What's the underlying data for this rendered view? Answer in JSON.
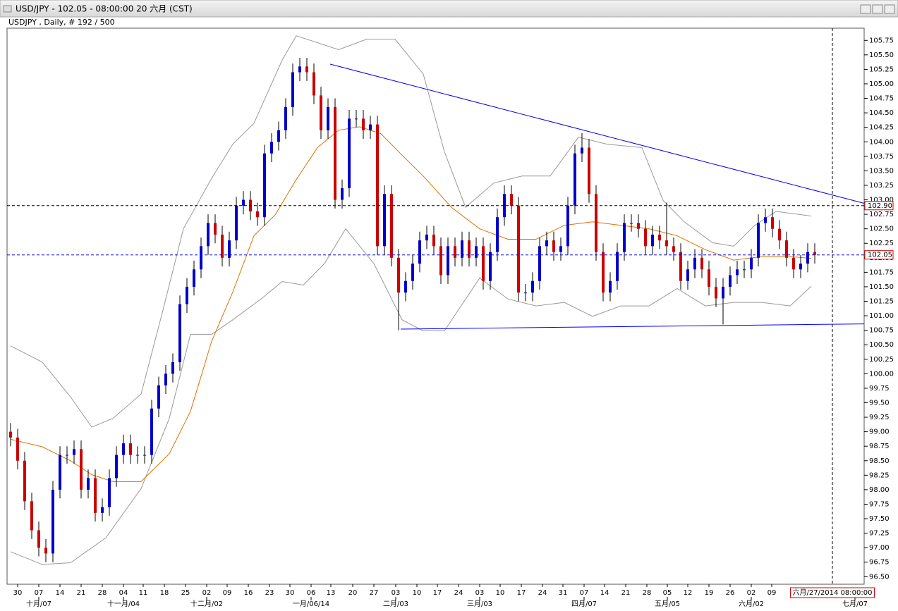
{
  "window": {
    "title": "USD/JPY - 102.05 - 08:00:00  20 六月 (CST)"
  },
  "chart_data": {
    "type": "candlestick",
    "subtitle": "USDJPY , Daily, # 192 / 500",
    "up_color": "#0000cc",
    "down_color": "#cc0000",
    "open": [
      99.0,
      98.9,
      98.5,
      97.8,
      97.3,
      97.0,
      96.9,
      98.0,
      98.6,
      98.6,
      98.7,
      98.0,
      98.2,
      97.6,
      97.7,
      98.2,
      98.6,
      98.8,
      98.6,
      98.6,
      98.6,
      99.4,
      99.8,
      100.0,
      100.2,
      101.2,
      101.5,
      101.8,
      102.2,
      102.6,
      102.4,
      102.0,
      102.3,
      102.9,
      103.0,
      102.8,
      102.7,
      103.8,
      104.0,
      104.2,
      104.6,
      105.2,
      105.3,
      105.2,
      104.8,
      104.2,
      104.6,
      103.0,
      103.2,
      104.4,
      104.4,
      104.2,
      104.3,
      102.2,
      103.1,
      102.0,
      101.4,
      101.6,
      101.9,
      102.3,
      102.4,
      102.2,
      101.7,
      102.2,
      102.0,
      102.3,
      102.0,
      102.2,
      101.6,
      102.1,
      102.7,
      103.1,
      102.9,
      101.4,
      101.4,
      101.6,
      102.2,
      102.3,
      102.1,
      102.2,
      102.9,
      103.8,
      103.9,
      103.1,
      102.1,
      101.4,
      101.6,
      102.1,
      102.6,
      102.6,
      102.5,
      102.2,
      102.4,
      102.3,
      102.2,
      102.1,
      101.6,
      101.8,
      102.0,
      101.8,
      101.5,
      101.3,
      101.5,
      101.7,
      101.8,
      101.8,
      102.0,
      102.6,
      102.7,
      102.5,
      102.3,
      102.0,
      101.8,
      101.9,
      102.1
    ],
    "high": [
      99.15,
      99.05,
      98.65,
      97.95,
      97.45,
      97.15,
      98.15,
      98.75,
      98.75,
      98.85,
      98.85,
      98.35,
      98.35,
      97.85,
      98.35,
      98.75,
      98.95,
      98.95,
      98.75,
      98.75,
      99.55,
      99.95,
      100.15,
      100.35,
      101.35,
      101.65,
      101.95,
      102.35,
      102.75,
      102.75,
      102.55,
      102.45,
      103.05,
      103.15,
      103.15,
      102.95,
      103.95,
      104.15,
      104.35,
      104.75,
      105.35,
      105.45,
      105.45,
      105.35,
      104.95,
      104.75,
      104.75,
      103.35,
      104.55,
      104.55,
      104.55,
      104.45,
      104.45,
      103.25,
      103.25,
      102.15,
      101.75,
      102.05,
      102.45,
      102.55,
      102.55,
      102.35,
      102.35,
      102.35,
      102.45,
      102.45,
      102.35,
      102.35,
      102.25,
      102.85,
      103.25,
      103.25,
      103.05,
      101.55,
      101.75,
      102.35,
      102.45,
      102.45,
      102.35,
      103.05,
      103.95,
      104.15,
      104.05,
      103.25,
      102.25,
      101.75,
      102.25,
      102.75,
      102.75,
      102.75,
      102.65,
      102.55,
      102.55,
      102.95,
      102.35,
      102.25,
      101.95,
      102.15,
      102.15,
      101.95,
      101.65,
      101.65,
      101.85,
      101.95,
      101.95,
      102.15,
      102.75,
      102.85,
      102.85,
      102.65,
      102.45,
      102.15,
      102.05,
      102.25,
      102.25
    ],
    "low": [
      98.75,
      98.35,
      97.65,
      97.15,
      96.85,
      96.75,
      96.75,
      97.85,
      98.45,
      98.45,
      97.85,
      97.85,
      97.45,
      97.45,
      97.55,
      98.05,
      98.45,
      98.45,
      98.45,
      98.45,
      98.45,
      99.25,
      99.65,
      99.85,
      100.05,
      101.05,
      101.35,
      101.65,
      102.05,
      102.25,
      101.85,
      101.85,
      102.15,
      102.75,
      102.65,
      102.55,
      102.55,
      103.65,
      103.85,
      104.05,
      104.45,
      105.05,
      105.05,
      104.65,
      104.05,
      104.05,
      102.85,
      102.85,
      103.05,
      104.25,
      104.05,
      104.05,
      102.05,
      102.05,
      101.85,
      100.75,
      101.25,
      101.45,
      101.75,
      102.15,
      102.05,
      101.55,
      101.55,
      101.85,
      101.85,
      101.85,
      101.85,
      101.45,
      101.45,
      101.95,
      102.55,
      102.75,
      101.25,
      101.25,
      101.25,
      101.45,
      102.05,
      101.95,
      101.95,
      102.05,
      102.75,
      103.65,
      102.95,
      101.95,
      101.25,
      101.25,
      101.45,
      101.95,
      102.45,
      102.35,
      102.05,
      102.05,
      102.15,
      102.05,
      101.95,
      101.45,
      101.45,
      101.65,
      101.65,
      101.35,
      101.15,
      100.85,
      101.35,
      101.55,
      101.65,
      101.65,
      101.85,
      102.45,
      102.35,
      102.15,
      101.85,
      101.65,
      101.65,
      101.75,
      101.9
    ],
    "close": [
      98.9,
      98.5,
      97.8,
      97.3,
      97.0,
      96.9,
      98.0,
      98.6,
      98.6,
      98.7,
      98.0,
      98.2,
      97.6,
      97.7,
      98.2,
      98.6,
      98.8,
      98.6,
      98.6,
      98.6,
      99.4,
      99.8,
      100.0,
      100.2,
      101.2,
      101.5,
      101.8,
      102.2,
      102.6,
      102.4,
      102.0,
      102.3,
      102.9,
      103.0,
      102.8,
      102.7,
      103.8,
      104.0,
      104.2,
      104.6,
      105.2,
      105.3,
      105.2,
      104.8,
      104.2,
      104.6,
      103.0,
      103.2,
      104.4,
      104.4,
      104.2,
      104.3,
      102.2,
      103.1,
      102.0,
      101.4,
      101.6,
      101.9,
      102.3,
      102.4,
      102.2,
      101.7,
      102.2,
      102.0,
      102.3,
      102.0,
      102.2,
      101.6,
      102.1,
      102.7,
      103.1,
      102.9,
      101.4,
      101.4,
      101.6,
      102.2,
      102.3,
      102.1,
      102.2,
      102.9,
      103.8,
      103.9,
      103.1,
      102.1,
      101.4,
      101.6,
      102.1,
      102.6,
      102.6,
      102.5,
      102.2,
      102.4,
      102.3,
      102.2,
      102.1,
      101.6,
      101.8,
      102.0,
      101.8,
      101.5,
      101.3,
      101.5,
      101.7,
      101.8,
      101.8,
      102.0,
      102.6,
      102.7,
      102.5,
      102.3,
      102.0,
      101.8,
      101.9,
      102.1,
      102.05
    ],
    "lines": [
      {
        "color": "#999999",
        "x": [
          0,
          4.5,
          8.5,
          11.5,
          14.5,
          18.5,
          21.5,
          24.5,
          28.5,
          31.5,
          34.5,
          38.5,
          40.5,
          46.5,
          50.5,
          54.5,
          58.5,
          61.5,
          64.5,
          68.5,
          72.5,
          76.5,
          80.5,
          84.5,
          89.5,
          92.5,
          95.5,
          99.5,
          102.5,
          105.5,
          108.5,
          113.5
        ],
        "values": [
          100.48,
          100.2,
          99.6,
          99.08,
          99.23,
          99.65,
          101.05,
          102.5,
          103.37,
          103.96,
          104.32,
          105.41,
          105.83,
          105.59,
          105.77,
          105.77,
          105.17,
          103.83,
          102.87,
          103.29,
          103.41,
          103.41,
          104.08,
          103.96,
          103.9,
          102.99,
          102.62,
          102.26,
          102.2,
          102.56,
          102.8,
          102.72
        ]
      },
      {
        "color": "#999999",
        "x": [
          0,
          4.5,
          8.5,
          13.5,
          18.5,
          22.5,
          25.5,
          28.5,
          31.5,
          35.5,
          38.5,
          41.5,
          44.5,
          47.5,
          51.5,
          55.5,
          58.5,
          61.5,
          66.5,
          70.5,
          74.5,
          78.5,
          82.5,
          86.5,
          90.5,
          94.5,
          98.5,
          102.5,
          106.5,
          110.5,
          113.5
        ],
        "values": [
          96.93,
          96.71,
          96.74,
          97.17,
          98.02,
          99.23,
          100.68,
          100.68,
          100.93,
          101.29,
          101.59,
          101.53,
          101.9,
          102.5,
          101.9,
          100.93,
          100.74,
          100.74,
          101.65,
          101.29,
          101.17,
          101.23,
          100.99,
          101.17,
          101.17,
          101.47,
          101.17,
          101.23,
          101.23,
          101.17,
          101.51
        ]
      },
      {
        "color": "#e07000",
        "x": [
          0,
          4.5,
          8.5,
          11.5,
          14.5,
          18.5,
          22.5,
          25.5,
          28.5,
          31.5,
          34.5,
          37.5,
          40.5,
          43.5,
          46.5,
          49.5,
          52.5,
          55.5,
          58.5,
          62.5,
          66.5,
          70.5,
          74.5,
          78.5,
          82.5,
          86.5,
          90.5,
          94.5,
          98.5,
          102.5,
          106.5,
          110.5,
          113.5
        ],
        "values": [
          98.87,
          98.74,
          98.5,
          98.26,
          98.14,
          98.14,
          98.62,
          99.35,
          100.56,
          101.41,
          102.38,
          102.74,
          103.35,
          103.9,
          104.2,
          104.26,
          104.14,
          103.77,
          103.41,
          102.87,
          102.5,
          102.32,
          102.32,
          102.56,
          102.62,
          102.56,
          102.5,
          102.38,
          102.14,
          101.96,
          102.02,
          102.02,
          101.99
        ]
      }
    ],
    "trendlines": [
      {
        "color": "#0000ff",
        "x": [
          45.3,
          121
        ],
        "values": [
          105.34,
          102.94
        ]
      },
      {
        "color": "#0000ff",
        "x": [
          55.3,
          121
        ],
        "values": [
          100.77,
          100.86
        ]
      }
    ],
    "hlines": [
      {
        "value": 102.9,
        "label": "102.90",
        "color": "#000000"
      },
      {
        "value": 102.05,
        "label": "102.05",
        "color": "#0000ff"
      }
    ],
    "vline": {
      "value": 116.5,
      "label": "六月/27/2014 08:00:00"
    },
    "xlim": [
      -0.5,
      121
    ],
    "ylim": [
      96.37,
      105.96
    ],
    "xticks": [
      {
        "value": 1,
        "label": "30"
      },
      {
        "value": 4,
        "label": "07"
      },
      {
        "value": 7,
        "label": "14"
      },
      {
        "value": 10,
        "label": "21"
      },
      {
        "value": 13,
        "label": "28"
      },
      {
        "value": 16,
        "label": "04"
      },
      {
        "value": 18.8,
        "label": "11"
      },
      {
        "value": 21.8,
        "label": "18"
      },
      {
        "value": 24.8,
        "label": "25"
      },
      {
        "value": 27.8,
        "label": "02"
      },
      {
        "value": 30.7,
        "label": "09"
      },
      {
        "value": 33.7,
        "label": "16"
      },
      {
        "value": 36.7,
        "label": "23"
      },
      {
        "value": 39.6,
        "label": "30"
      },
      {
        "value": 42.6,
        "label": "06"
      },
      {
        "value": 45.4,
        "label": "13"
      },
      {
        "value": 48.5,
        "label": "20"
      },
      {
        "value": 51.5,
        "label": "27"
      },
      {
        "value": 54.6,
        "label": "03"
      },
      {
        "value": 57.6,
        "label": "10"
      },
      {
        "value": 60.5,
        "label": "17"
      },
      {
        "value": 63.5,
        "label": "24"
      },
      {
        "value": 66.5,
        "label": "03"
      },
      {
        "value": 69.4,
        "label": "10"
      },
      {
        "value": 72.4,
        "label": "17"
      },
      {
        "value": 75.4,
        "label": "24"
      },
      {
        "value": 78.3,
        "label": "31"
      },
      {
        "value": 81.3,
        "label": "07"
      },
      {
        "value": 84.2,
        "label": "14"
      },
      {
        "value": 87.2,
        "label": "21"
      },
      {
        "value": 90.2,
        "label": "28"
      },
      {
        "value": 93.1,
        "label": "05"
      },
      {
        "value": 96,
        "label": "12"
      },
      {
        "value": 99,
        "label": "19"
      },
      {
        "value": 102,
        "label": "26"
      },
      {
        "value": 105,
        "label": "02"
      },
      {
        "value": 107.9,
        "label": "09"
      }
    ],
    "month_ticks": [
      {
        "value": 4,
        "label": "十月/07"
      },
      {
        "value": 16,
        "label": "十一月/04"
      },
      {
        "value": 27.8,
        "label": "十二月/02"
      },
      {
        "value": 42.6,
        "label": "一月/06/14"
      },
      {
        "value": 54.6,
        "label": "二月/03"
      },
      {
        "value": 66.5,
        "label": "三月/03"
      },
      {
        "value": 81.3,
        "label": "四月/07"
      },
      {
        "value": 93.1,
        "label": "五月/05"
      },
      {
        "value": 105,
        "label": "六月/02"
      },
      {
        "value": 119.7,
        "label": "七月/07"
      }
    ],
    "yticks": [
      {
        "value": 96.5,
        "label": "96.50"
      },
      {
        "value": 96.75,
        "label": "96.75"
      },
      {
        "value": 97,
        "label": "97.00"
      },
      {
        "value": 97.25,
        "label": "97.25"
      },
      {
        "value": 97.5,
        "label": "97.50"
      },
      {
        "value": 97.75,
        "label": "97.75"
      },
      {
        "value": 98,
        "label": "98.00"
      },
      {
        "value": 98.25,
        "label": "98.25"
      },
      {
        "value": 98.5,
        "label": "98.50"
      },
      {
        "value": 98.75,
        "label": "98.75"
      },
      {
        "value": 99,
        "label": "99.00"
      },
      {
        "value": 99.25,
        "label": "99.25"
      },
      {
        "value": 99.5,
        "label": "99.50"
      },
      {
        "value": 99.75,
        "label": "99.75"
      },
      {
        "value": 100,
        "label": "100.00"
      },
      {
        "value": 100.25,
        "label": "100.25"
      },
      {
        "value": 100.5,
        "label": "100.50"
      },
      {
        "value": 100.75,
        "label": "100.75"
      },
      {
        "value": 101,
        "label": "101.00"
      },
      {
        "value": 101.25,
        "label": "101.25"
      },
      {
        "value": 101.5,
        "label": "101.50"
      },
      {
        "value": 101.75,
        "label": "101.75"
      },
      {
        "value": 102,
        "label": "102.00"
      },
      {
        "value": 102.25,
        "label": "102.25"
      },
      {
        "value": 102.5,
        "label": "102.50"
      },
      {
        "value": 102.75,
        "label": "102.75"
      },
      {
        "value": 103,
        "label": "103.00"
      },
      {
        "value": 103.25,
        "label": "103.25"
      },
      {
        "value": 103.5,
        "label": "103.50"
      },
      {
        "value": 103.75,
        "label": "103.75"
      },
      {
        "value": 104,
        "label": "104.00"
      },
      {
        "value": 104.25,
        "label": "104.25"
      },
      {
        "value": 104.5,
        "label": "104.50"
      },
      {
        "value": 104.75,
        "label": "104.75"
      },
      {
        "value": 105,
        "label": "105.00"
      },
      {
        "value": 105.25,
        "label": "105.25"
      },
      {
        "value": 105.5,
        "label": "105.50"
      },
      {
        "value": 105.75,
        "label": "105.75"
      }
    ]
  }
}
